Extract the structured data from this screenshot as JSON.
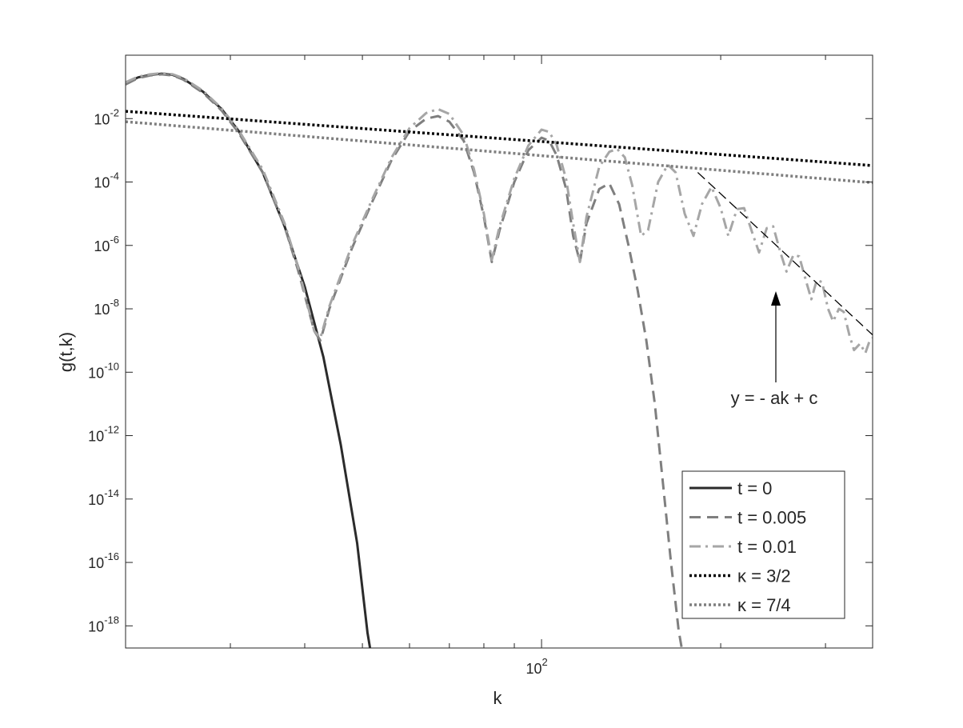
{
  "chart_data": {
    "type": "line",
    "title": "",
    "xlabel": "k",
    "ylabel": "g(t,k)",
    "x_scale": "log",
    "y_scale": "log",
    "xlim": [
      20,
      360
    ],
    "ylim": [
      2e-19,
      1
    ],
    "y_ticks": [
      {
        "value": 1e-18,
        "base": "10",
        "exp": "-18"
      },
      {
        "value": 1e-16,
        "base": "10",
        "exp": "-16"
      },
      {
        "value": 1e-14,
        "base": "10",
        "exp": "-14"
      },
      {
        "value": 1e-12,
        "base": "10",
        "exp": "-12"
      },
      {
        "value": 1e-10,
        "base": "10",
        "exp": "-10"
      },
      {
        "value": 1e-08,
        "base": "10",
        "exp": "-8"
      },
      {
        "value": 1e-06,
        "base": "10",
        "exp": "-6"
      },
      {
        "value": 0.0001,
        "base": "10",
        "exp": "-4"
      },
      {
        "value": 0.01,
        "base": "10",
        "exp": "-2"
      }
    ],
    "x_ticks": [
      {
        "value": 100,
        "base": "10",
        "exp": "2"
      }
    ],
    "x_minor_ticks": [
      30,
      40,
      50,
      60,
      70,
      80,
      90,
      200,
      300
    ],
    "grid": false,
    "legend_position": "bottom-right",
    "series": [
      {
        "name": "t = 0",
        "color": "#2b2b2b",
        "style": "solid",
        "points": [
          [
            20,
            0.13
          ],
          [
            21,
            0.2
          ],
          [
            22,
            0.24
          ],
          [
            23,
            0.26
          ],
          [
            24,
            0.24
          ],
          [
            25,
            0.18
          ],
          [
            27,
            0.07
          ],
          [
            29,
            0.02
          ],
          [
            31,
            0.004
          ],
          [
            34,
            0.0002
          ],
          [
            37,
            4e-06
          ],
          [
            40,
            5e-08
          ],
          [
            43,
            3e-10
          ],
          [
            46,
            5e-13
          ],
          [
            49,
            4e-16
          ],
          [
            51,
            6e-19
          ],
          [
            51.5,
            2e-19
          ]
        ]
      },
      {
        "name": "t = 0.005",
        "color": "#7f7f7f",
        "style": "dashed",
        "points": [
          [
            20,
            0.12
          ],
          [
            21,
            0.19
          ],
          [
            22,
            0.23
          ],
          [
            23,
            0.25
          ],
          [
            24,
            0.23
          ],
          [
            25,
            0.17
          ],
          [
            27,
            0.065
          ],
          [
            29,
            0.018
          ],
          [
            31,
            0.0035
          ],
          [
            34,
            0.0002
          ],
          [
            37,
            4e-06
          ],
          [
            39,
            1.6e-07
          ],
          [
            41.5,
            2e-09
          ],
          [
            42.5,
            1e-09
          ],
          [
            44,
            1e-08
          ],
          [
            48,
            8e-07
          ],
          [
            52,
            2.5e-05
          ],
          [
            56,
            0.0005
          ],
          [
            60,
            0.004
          ],
          [
            64,
            0.01
          ],
          [
            67,
            0.012
          ],
          [
            70,
            0.008
          ],
          [
            74,
            0.002
          ],
          [
            77,
            0.0002
          ],
          [
            80,
            8e-06
          ],
          [
            82.5,
            3e-07
          ],
          [
            85,
            3e-06
          ],
          [
            90,
            0.0001
          ],
          [
            95,
            0.001
          ],
          [
            100,
            0.0025
          ],
          [
            103,
            0.002
          ],
          [
            106,
            0.0007
          ],
          [
            110,
            6e-05
          ],
          [
            113,
            2e-06
          ],
          [
            116,
            3e-07
          ],
          [
            119,
            5e-06
          ],
          [
            125,
            6e-05
          ],
          [
            130,
            9e-05
          ],
          [
            135,
            2e-05
          ],
          [
            140,
            1e-06
          ],
          [
            145,
            4e-08
          ],
          [
            150,
            1e-09
          ],
          [
            155,
            1e-11
          ],
          [
            160,
            3e-14
          ],
          [
            165,
            1e-16
          ],
          [
            170,
            7e-19
          ],
          [
            172,
            2e-19
          ]
        ]
      },
      {
        "name": "t = 0.01",
        "color": "#a6a6a6",
        "style": "dashdot",
        "points": [
          [
            20,
            0.14
          ],
          [
            21,
            0.21
          ],
          [
            22,
            0.25
          ],
          [
            23,
            0.27
          ],
          [
            24,
            0.25
          ],
          [
            25,
            0.19
          ],
          [
            27,
            0.075
          ],
          [
            29,
            0.021
          ],
          [
            31,
            0.0042
          ],
          [
            34,
            0.00025
          ],
          [
            37,
            5e-06
          ],
          [
            39,
            2e-07
          ],
          [
            41.5,
            2e-09
          ],
          [
            42.5,
            1.2e-09
          ],
          [
            44,
            1.2e-08
          ],
          [
            48,
            1e-06
          ],
          [
            52,
            3e-05
          ],
          [
            56,
            0.0006
          ],
          [
            60,
            0.005
          ],
          [
            64,
            0.015
          ],
          [
            67,
            0.02
          ],
          [
            70,
            0.014
          ],
          [
            74,
            0.003
          ],
          [
            77,
            0.00025
          ],
          [
            80,
            1e-05
          ],
          [
            82.5,
            3.5e-07
          ],
          [
            85,
            4e-06
          ],
          [
            90,
            0.00013
          ],
          [
            95,
            0.0014
          ],
          [
            100,
            0.0045
          ],
          [
            103,
            0.0038
          ],
          [
            106,
            0.0015
          ],
          [
            110,
            0.00012
          ],
          [
            113,
            5e-06
          ],
          [
            116,
            3e-07
          ],
          [
            119,
            8e-06
          ],
          [
            125,
            0.0003
          ],
          [
            130,
            0.0009
          ],
          [
            134,
            0.0011
          ],
          [
            138,
            0.0006
          ],
          [
            142,
            8e-05
          ],
          [
            147,
            2e-06
          ],
          [
            151,
            3e-06
          ],
          [
            157,
            0.0001
          ],
          [
            163,
            0.00035
          ],
          [
            168,
            0.0002
          ],
          [
            174,
            1e-05
          ],
          [
            180,
            2e-06
          ],
          [
            186,
            2e-05
          ],
          [
            193,
            7e-05
          ],
          [
            200,
            1.5e-05
          ],
          [
            206,
            2e-06
          ],
          [
            213,
            1.4e-05
          ],
          [
            219,
            1.5e-05
          ],
          [
            226,
            2.5e-06
          ],
          [
            232,
            6e-07
          ],
          [
            239,
            3.5e-06
          ],
          [
            245,
            4e-06
          ],
          [
            252,
            6e-07
          ],
          [
            258,
            1.5e-07
          ],
          [
            265,
            5e-07
          ],
          [
            271,
            4.5e-07
          ],
          [
            278,
            8e-08
          ],
          [
            284,
            2e-08
          ],
          [
            290,
            8e-08
          ],
          [
            296,
            7e-08
          ],
          [
            303,
            1e-08
          ],
          [
            309,
            4e-09
          ],
          [
            316,
            1e-08
          ],
          [
            322,
            8e-09
          ],
          [
            329,
            1.5e-09
          ],
          [
            335,
            5e-10
          ],
          [
            343,
            8e-10
          ],
          [
            350,
            4e-10
          ],
          [
            356,
            1e-09
          ],
          [
            360,
            1.2e-09
          ]
        ]
      },
      {
        "name": "κ = 3/2",
        "color": "#000000",
        "style": "dotted",
        "points": [
          [
            20,
            0.017
          ],
          [
            360,
            0.00033
          ]
        ]
      },
      {
        "name": "κ = 7/4",
        "color": "#7f7f7f",
        "style": "dotted",
        "points": [
          [
            20,
            0.008
          ],
          [
            360,
            9.5e-05
          ]
        ]
      }
    ],
    "fit_line": {
      "color": "#000000",
      "style": "dashed",
      "points": [
        [
          183,
          0.0002
        ],
        [
          360,
          1.5e-09
        ]
      ]
    },
    "annotation": {
      "text": "y = - ak + c",
      "arrow_target": [
        280,
        1.2e-08
      ]
    }
  }
}
